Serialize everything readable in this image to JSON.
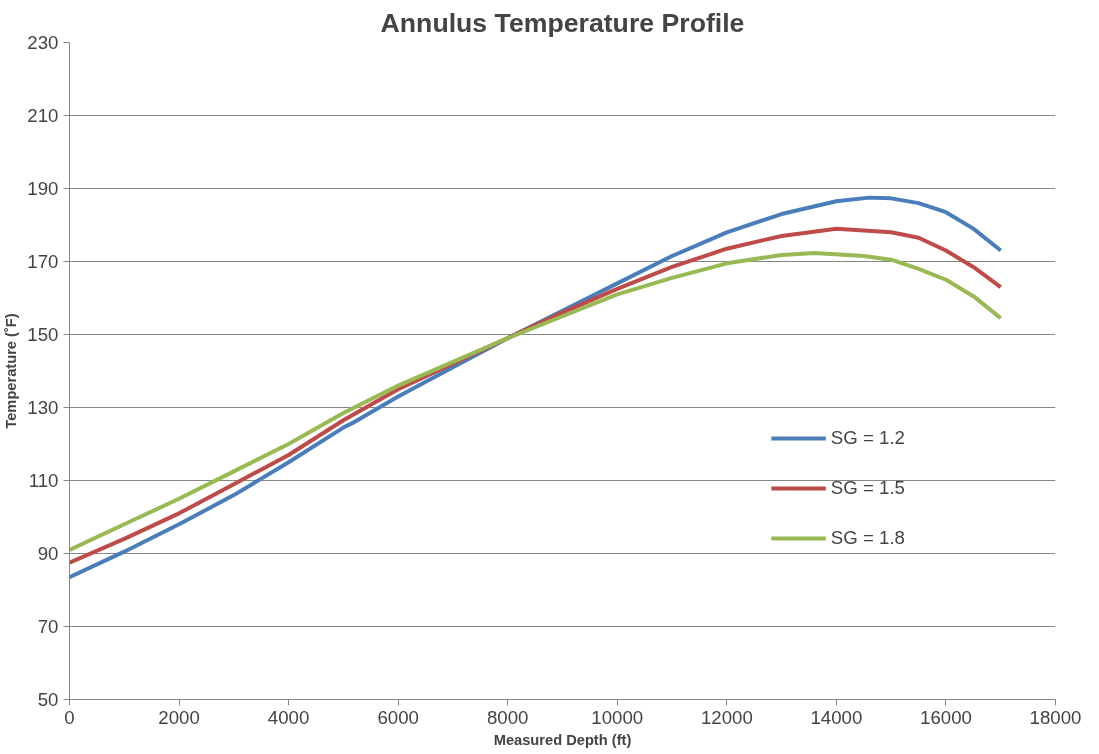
{
  "chart_data": {
    "type": "line",
    "title": "Annulus Temperature Profile",
    "xlabel": "Measured Depth (ft)",
    "ylabel": "Temperature (˚F)",
    "xlim": [
      0,
      18000
    ],
    "xticks": [
      0,
      2000,
      4000,
      6000,
      8000,
      10000,
      12000,
      14000,
      16000,
      18000
    ],
    "ylim": [
      50,
      230
    ],
    "yticks": [
      50,
      70,
      90,
      110,
      130,
      150,
      170,
      190,
      210,
      230
    ],
    "grid": "y",
    "legend": "right",
    "line_style": "solid",
    "series": [
      {
        "name": "SG = 1.2",
        "color": "#4a7ebb",
        "x": [
          0,
          1000,
          2000,
          3000,
          4000,
          5000,
          5200,
          6000,
          7000,
          8000,
          9000,
          10000,
          11000,
          12000,
          13000,
          14000,
          14600,
          15000,
          15500,
          16000,
          16500,
          17000
        ],
        "values": [
          83.5,
          90.5,
          98,
          106,
          115,
          124.5,
          126,
          133,
          141,
          149,
          156.5,
          164,
          171.5,
          178,
          183,
          186.5,
          187.5,
          187.3,
          186,
          183.5,
          179,
          173
        ]
      },
      {
        "name": "SG = 1.5",
        "color": "#be4b48",
        "x": [
          0,
          1000,
          2000,
          3000,
          4000,
          5000,
          6000,
          7000,
          8000,
          9000,
          10000,
          11000,
          12000,
          13000,
          14000,
          15000,
          15500,
          16000,
          16500,
          17000
        ],
        "values": [
          87.5,
          94,
          101,
          109,
          117,
          126.5,
          135,
          142,
          149,
          156,
          162.5,
          168.5,
          173.5,
          177,
          179,
          178,
          176.5,
          173,
          168.5,
          163
        ]
      },
      {
        "name": "SG = 1.8",
        "color": "#98b954",
        "x": [
          0,
          1000,
          2000,
          3000,
          4000,
          5000,
          6000,
          7000,
          8000,
          9000,
          10000,
          11000,
          12000,
          13000,
          13600,
          14500,
          15000,
          15500,
          16000,
          16500,
          17000
        ],
        "values": [
          91,
          98,
          105,
          112.5,
          120,
          128.5,
          136,
          142.5,
          149,
          155,
          161,
          165.5,
          169.5,
          171.8,
          172.3,
          171.5,
          170.5,
          168,
          165,
          160.5,
          154.5
        ]
      }
    ]
  }
}
